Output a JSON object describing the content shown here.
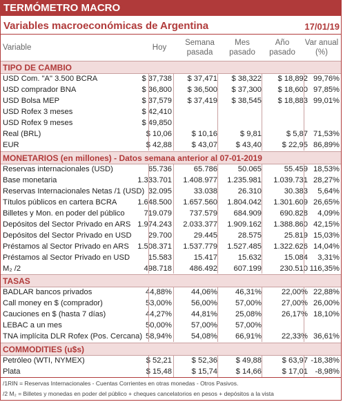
{
  "header": {
    "title": "TERMÓMETRO MACRO",
    "subtitle": "Variables macroeconómicas de Argentina",
    "date": "17/01/19"
  },
  "columns": {
    "variable": "Variable",
    "hoy": "Hoy",
    "semana": [
      "Semana",
      "pasada"
    ],
    "mes": [
      "Mes",
      "pasado"
    ],
    "anio": [
      "Año",
      "pasado"
    ],
    "var": [
      "Var anual",
      "(%)"
    ]
  },
  "sections": [
    {
      "title": "TIPO DE CAMBIO",
      "rows": [
        [
          "USD Com. \"A\" 3.500 BCRA",
          "$ 37,738",
          "$ 37,471",
          "$ 38,322",
          "$ 18,892",
          "99,76%"
        ],
        [
          "USD comprador BNA",
          "$ 36,800",
          "$ 36,500",
          "$ 37,300",
          "$ 18,600",
          "97,85%"
        ],
        [
          "USD Bolsa MEP",
          "$ 37,579",
          "$ 37,419",
          "$ 38,545",
          "$ 18,883",
          "99,01%"
        ],
        [
          "USD Rofex 3 meses",
          "$ 42,410",
          "",
          "",
          "",
          ""
        ],
        [
          "USD Rofex 9 meses",
          "$ 49,850",
          "",
          "",
          "",
          ""
        ],
        [
          "Real (BRL)",
          "$ 10,06",
          "$ 10,16",
          "$ 9,81",
          "$ 5,87",
          "71,53%"
        ],
        [
          "EUR",
          "$ 42,88",
          "$ 43,07",
          "$ 43,40",
          "$ 22,95",
          "86,89%"
        ]
      ]
    },
    {
      "title": "MONETARIOS (en millones) - Datos semana anterior al 07-01-2019",
      "rows": [
        [
          "Reservas internacionales (USD)",
          "65.736",
          "65.786",
          "50.065",
          "55.459",
          "18,53%"
        ],
        [
          "Base monetaria",
          "1.333.701",
          "1.408.977",
          "1.235.981",
          "1.039.731",
          "28,27%"
        ],
        [
          "Reservas Internacionales Netas /1 (USD)",
          "32.095",
          "33.038",
          "26.310",
          "30.383",
          "5,64%"
        ],
        [
          "Títulos públicos en cartera BCRA",
          "1.648.500",
          "1.657.560",
          "1.804.042",
          "1.301.609",
          "26,65%"
        ],
        [
          "Billetes y Mon. en poder del público",
          "719.079",
          "737.579",
          "684.909",
          "690.828",
          "4,09%"
        ],
        [
          "Depósitos del Sector Privado en ARS",
          "1.974.243",
          "2.033.377",
          "1.909.162",
          "1.388.860",
          "42,15%"
        ],
        [
          "Depósitos del Sector Privado en USD",
          "29.700",
          "29.445",
          "28.575",
          "25.819",
          "15,03%"
        ],
        [
          "Préstamos al Sector Privado en ARS",
          "1.508.371",
          "1.537.779",
          "1.527.485",
          "1.322.626",
          "14,04%"
        ],
        [
          "Préstamos al Sector Privado en USD",
          "15.583",
          "15.417",
          "15.632",
          "15.084",
          "3,31%"
        ],
        [
          "M₂ /2",
          "498.718",
          "486.492",
          "607.199",
          "230.510",
          "116,35%"
        ]
      ]
    },
    {
      "title": "TASAS",
      "rows": [
        [
          "BADLAR bancos privados",
          "44,88%",
          "44,06%",
          "46,31%",
          "22,00%",
          "22,88%"
        ],
        [
          "Call money en $ (comprador)",
          "53,00%",
          "56,00%",
          "57,00%",
          "27,00%",
          "26,00%"
        ],
        [
          "Cauciones en $ (hasta 7 días)",
          "44,27%",
          "44,81%",
          "25,08%",
          "26,17%",
          "18,10%"
        ],
        [
          "LEBAC a un mes",
          "50,00%",
          "57,00%",
          "57,00%",
          "",
          ""
        ],
        [
          "TNA implícita DLR Rofex (Pos. Cercana)",
          "58,94%",
          "54,08%",
          "66,91%",
          "22,33%",
          "36,61%"
        ]
      ]
    },
    {
      "title": "COMMODITIES (u$s)",
      "rows": [
        [
          "Petróleo (WTI, NYMEX)",
          "$ 52,21",
          "$ 52,36",
          "$ 49,88",
          "$ 63,97",
          "-18,38%"
        ],
        [
          "Plata",
          "$ 15,48",
          "$ 15,74",
          "$ 14,66",
          "$ 17,01",
          "-8,98%"
        ]
      ]
    }
  ],
  "footnotes": [
    "/1RIN = Reservas Internacionales - Cuentas Corrientes en otras monedas - Otros Pasivos.",
    "/2 M₂ = Billetes y monedas en poder del público + cheques cancelatorios en pesos + depósitos a la vista"
  ]
}
